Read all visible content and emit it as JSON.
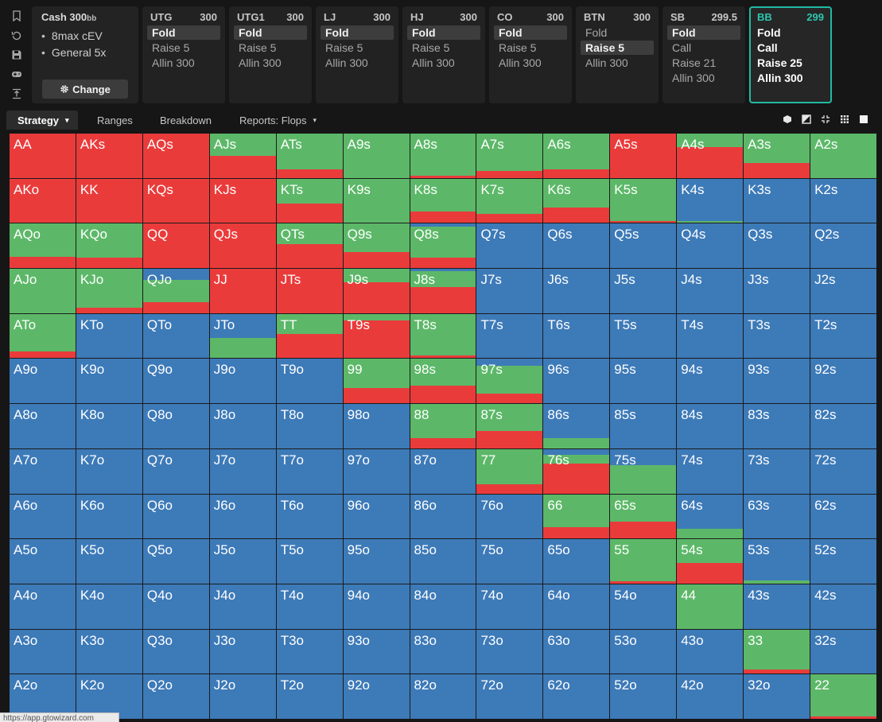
{
  "colors": {
    "fold": "#3d7ab8",
    "call": "#5cb868",
    "raise": "#ea3b3b",
    "accent": "#22b9a4"
  },
  "rail": [
    "bookmark-icon",
    "history-icon",
    "save-icon",
    "gamepad-icon",
    "upload-icon"
  ],
  "config": {
    "title": "Cash 300",
    "title_unit": "bb",
    "items": [
      "8max cEV",
      "General 5x"
    ],
    "change_label": "Change"
  },
  "positions": [
    {
      "name": "UTG",
      "stack": "300",
      "actions": [
        "Fold",
        "Raise 5",
        "Allin 300"
      ],
      "selected": 0
    },
    {
      "name": "UTG1",
      "stack": "300",
      "actions": [
        "Fold",
        "Raise 5",
        "Allin 300"
      ],
      "selected": 0
    },
    {
      "name": "LJ",
      "stack": "300",
      "actions": [
        "Fold",
        "Raise 5",
        "Allin 300"
      ],
      "selected": 0
    },
    {
      "name": "HJ",
      "stack": "300",
      "actions": [
        "Fold",
        "Raise 5",
        "Allin 300"
      ],
      "selected": 0
    },
    {
      "name": "CO",
      "stack": "300",
      "actions": [
        "Fold",
        "Raise 5",
        "Allin 300"
      ],
      "selected": 0
    },
    {
      "name": "BTN",
      "stack": "300",
      "actions": [
        "Fold",
        "Raise 5",
        "Allin 300"
      ],
      "selected": 1
    },
    {
      "name": "SB",
      "stack": "299.5",
      "actions": [
        "Fold",
        "Call",
        "Raise 21",
        "Allin 300"
      ],
      "selected": 0
    },
    {
      "name": "BB",
      "stack": "299",
      "actions": [
        "Fold",
        "Call",
        "Raise 25",
        "Allin 300"
      ],
      "selected": -1,
      "active": true
    }
  ],
  "tabs": [
    {
      "label": "Strategy",
      "caret": "▾"
    },
    {
      "label": "Ranges",
      "caret": ""
    },
    {
      "label": "Breakdown",
      "caret": ""
    },
    {
      "label": "Reports: Flops",
      "caret": "▾"
    }
  ],
  "view_icons": [
    "cube-icon",
    "half-square-icon",
    "compact-icon",
    "grid-icon",
    "square-icon"
  ],
  "ranks": [
    "A",
    "K",
    "Q",
    "J",
    "T",
    "9",
    "8",
    "7",
    "6",
    "5",
    "4",
    "3",
    "2"
  ],
  "strategy": {
    "AA": {
      "call": 0,
      "raise": 1
    },
    "AKs": {
      "call": 0,
      "raise": 1
    },
    "AQs": {
      "call": 0,
      "raise": 1
    },
    "AJs": {
      "call": 0.5,
      "raise": 0.5
    },
    "ATs": {
      "call": 0.8,
      "raise": 0.2
    },
    "A9s": {
      "call": 1,
      "raise": 0
    },
    "A8s": {
      "call": 0.96,
      "raise": 0.04
    },
    "A7s": {
      "call": 0.85,
      "raise": 0.15
    },
    "A6s": {
      "call": 0.8,
      "raise": 0.2
    },
    "A5s": {
      "call": 0,
      "raise": 1
    },
    "A4s": {
      "call": 0.3,
      "raise": 0.7
    },
    "A3s": {
      "call": 0.66,
      "raise": 0.34
    },
    "A2s": {
      "call": 1,
      "raise": 0
    },
    "AKo": {
      "call": 0,
      "raise": 1
    },
    "KK": {
      "call": 0,
      "raise": 1
    },
    "KQs": {
      "call": 0,
      "raise": 1
    },
    "KJs": {
      "call": 0,
      "raise": 1
    },
    "KTs": {
      "call": 0.57,
      "raise": 0.43
    },
    "K9s": {
      "call": 1,
      "raise": 0
    },
    "K8s": {
      "call": 0.74,
      "raise": 0.26
    },
    "K7s": {
      "call": 0.8,
      "raise": 0.2
    },
    "K6s": {
      "call": 0.66,
      "raise": 0.34
    },
    "K5s": {
      "call": 0.96,
      "raise": 0.04
    },
    "K4s": {
      "fold": 0.95,
      "call": 0.05,
      "raise": 0
    },
    "K3s": {
      "fold": 1
    },
    "K2s": {
      "fold": 1
    },
    "AQo": {
      "call": 0.75,
      "raise": 0.25
    },
    "KQo": {
      "call": 0.77,
      "raise": 0.23
    },
    "QQ": {
      "call": 0,
      "raise": 1
    },
    "QJs": {
      "call": 0,
      "raise": 1
    },
    "QTs": {
      "call": 0.46,
      "raise": 0.54
    },
    "Q9s": {
      "call": 0.64,
      "raise": 0.36
    },
    "Q8s": {
      "fold": 0.06,
      "call": 0.71,
      "raise": 0.23
    },
    "Q7s": {
      "fold": 1
    },
    "Q6s": {
      "fold": 1
    },
    "Q5s": {
      "fold": 1
    },
    "Q4s": {
      "fold": 1
    },
    "Q3s": {
      "fold": 1
    },
    "Q2s": {
      "fold": 1
    },
    "AJo": {
      "call": 1,
      "raise": 0
    },
    "KJo": {
      "call": 0.88,
      "raise": 0.12
    },
    "QJo": {
      "fold": 0.25,
      "call": 0.5,
      "raise": 0.25
    },
    "JJ": {
      "call": 0,
      "raise": 1
    },
    "JTs": {
      "call": 0,
      "raise": 1
    },
    "J9s": {
      "call": 0.3,
      "raise": 0.7
    },
    "J8s": {
      "fold": 0.05,
      "call": 0.36,
      "raise": 0.59
    },
    "J7s": {
      "fold": 1
    },
    "J6s": {
      "fold": 1
    },
    "J5s": {
      "fold": 1
    },
    "J4s": {
      "fold": 1
    },
    "J3s": {
      "fold": 1
    },
    "J2s": {
      "fold": 1
    },
    "ATo": {
      "call": 0.84,
      "raise": 0.16
    },
    "KTo": {
      "fold": 1
    },
    "QTo": {
      "fold": 1
    },
    "JTo": {
      "fold": 0.54,
      "call": 0.46,
      "raise": 0
    },
    "TT": {
      "call": 0.46,
      "raise": 0.54
    },
    "T9s": {
      "call": 0.14,
      "raise": 0.86
    },
    "T8s": {
      "call": 0.93,
      "raise": 0.07
    },
    "T7s": {
      "fold": 1
    },
    "T6s": {
      "fold": 1
    },
    "T5s": {
      "fold": 1
    },
    "T4s": {
      "fold": 1
    },
    "T3s": {
      "fold": 1
    },
    "T2s": {
      "fold": 1
    },
    "A9o": {
      "fold": 1
    },
    "K9o": {
      "fold": 1
    },
    "Q9o": {
      "fold": 1
    },
    "J9o": {
      "fold": 1
    },
    "T9o": {
      "fold": 1
    },
    "99": {
      "call": 0.66,
      "raise": 0.34
    },
    "98s": {
      "call": 0.6,
      "raise": 0.4
    },
    "97s": {
      "fold": 0.15,
      "call": 0.63,
      "raise": 0.22
    },
    "96s": {
      "fold": 1
    },
    "95s": {
      "fold": 1
    },
    "94s": {
      "fold": 1
    },
    "93s": {
      "fold": 1
    },
    "92s": {
      "fold": 1
    },
    "A8o": {
      "fold": 1
    },
    "K8o": {
      "fold": 1
    },
    "Q8o": {
      "fold": 1
    },
    "J8o": {
      "fold": 1
    },
    "T8o": {
      "fold": 1
    },
    "98o": {
      "fold": 1
    },
    "88": {
      "call": 0.77,
      "raise": 0.23
    },
    "87s": {
      "call": 0.6,
      "raise": 0.4
    },
    "86s": {
      "fold": 0.77,
      "call": 0.23,
      "raise": 0
    },
    "85s": {
      "fold": 1
    },
    "84s": {
      "fold": 1
    },
    "83s": {
      "fold": 1
    },
    "82s": {
      "fold": 1
    },
    "A7o": {
      "fold": 1
    },
    "K7o": {
      "fold": 1
    },
    "Q7o": {
      "fold": 1
    },
    "J7o": {
      "fold": 1
    },
    "T7o": {
      "fold": 1
    },
    "97o": {
      "fold": 1
    },
    "87o": {
      "fold": 1
    },
    "77": {
      "call": 0.8,
      "raise": 0.2
    },
    "76s": {
      "fold": 0.12,
      "call": 0.2,
      "raise": 0.68
    },
    "75s": {
      "fold": 0.37,
      "call": 0.63,
      "raise": 0
    },
    "74s": {
      "fold": 1
    },
    "73s": {
      "fold": 1
    },
    "72s": {
      "fold": 1
    },
    "A6o": {
      "fold": 1
    },
    "K6o": {
      "fold": 1
    },
    "Q6o": {
      "fold": 1
    },
    "J6o": {
      "fold": 1
    },
    "T6o": {
      "fold": 1
    },
    "96o": {
      "fold": 1
    },
    "86o": {
      "fold": 1
    },
    "76o": {
      "fold": 1
    },
    "66": {
      "call": 0.75,
      "raise": 0.25
    },
    "65s": {
      "call": 0.62,
      "raise": 0.38
    },
    "64s": {
      "fold": 0.78,
      "call": 0.22,
      "raise": 0
    },
    "63s": {
      "fold": 1
    },
    "62s": {
      "fold": 1
    },
    "A5o": {
      "fold": 1
    },
    "K5o": {
      "fold": 1
    },
    "Q5o": {
      "fold": 1
    },
    "J5o": {
      "fold": 1
    },
    "T5o": {
      "fold": 1
    },
    "95o": {
      "fold": 1
    },
    "85o": {
      "fold": 1
    },
    "75o": {
      "fold": 1
    },
    "65o": {
      "fold": 1
    },
    "55": {
      "call": 0.95,
      "raise": 0.05
    },
    "54s": {
      "call": 0.54,
      "raise": 0.46
    },
    "53s": {
      "fold": 0.93,
      "call": 0.07,
      "raise": 0
    },
    "52s": {
      "fold": 1
    },
    "A4o": {
      "fold": 1
    },
    "K4o": {
      "fold": 1
    },
    "Q4o": {
      "fold": 1
    },
    "J4o": {
      "fold": 1
    },
    "T4o": {
      "fold": 1
    },
    "94o": {
      "fold": 1
    },
    "84o": {
      "fold": 1
    },
    "74o": {
      "fold": 1
    },
    "64o": {
      "fold": 1
    },
    "54o": {
      "fold": 1
    },
    "44": {
      "call": 1,
      "raise": 0
    },
    "43s": {
      "fold": 1
    },
    "42s": {
      "fold": 1
    },
    "A3o": {
      "fold": 1
    },
    "K3o": {
      "fold": 1
    },
    "Q3o": {
      "fold": 1
    },
    "J3o": {
      "fold": 1
    },
    "T3o": {
      "fold": 1
    },
    "93o": {
      "fold": 1
    },
    "83o": {
      "fold": 1
    },
    "73o": {
      "fold": 1
    },
    "63o": {
      "fold": 1
    },
    "53o": {
      "fold": 1
    },
    "43o": {
      "fold": 1
    },
    "33": {
      "call": 0.9,
      "raise": 0.1
    },
    "32s": {
      "fold": 1
    },
    "A2o": {
      "fold": 1
    },
    "K2o": {
      "fold": 1
    },
    "Q2o": {
      "fold": 1
    },
    "J2o": {
      "fold": 1
    },
    "T2o": {
      "fold": 1
    },
    "92o": {
      "fold": 1
    },
    "82o": {
      "fold": 1
    },
    "72o": {
      "fold": 1
    },
    "62o": {
      "fold": 1
    },
    "52o": {
      "fold": 1
    },
    "42o": {
      "fold": 1
    },
    "32o": {
      "fold": 1
    },
    "22": {
      "call": 0.95,
      "raise": 0.05
    }
  },
  "status_url": "https://app.gtowizard.com"
}
